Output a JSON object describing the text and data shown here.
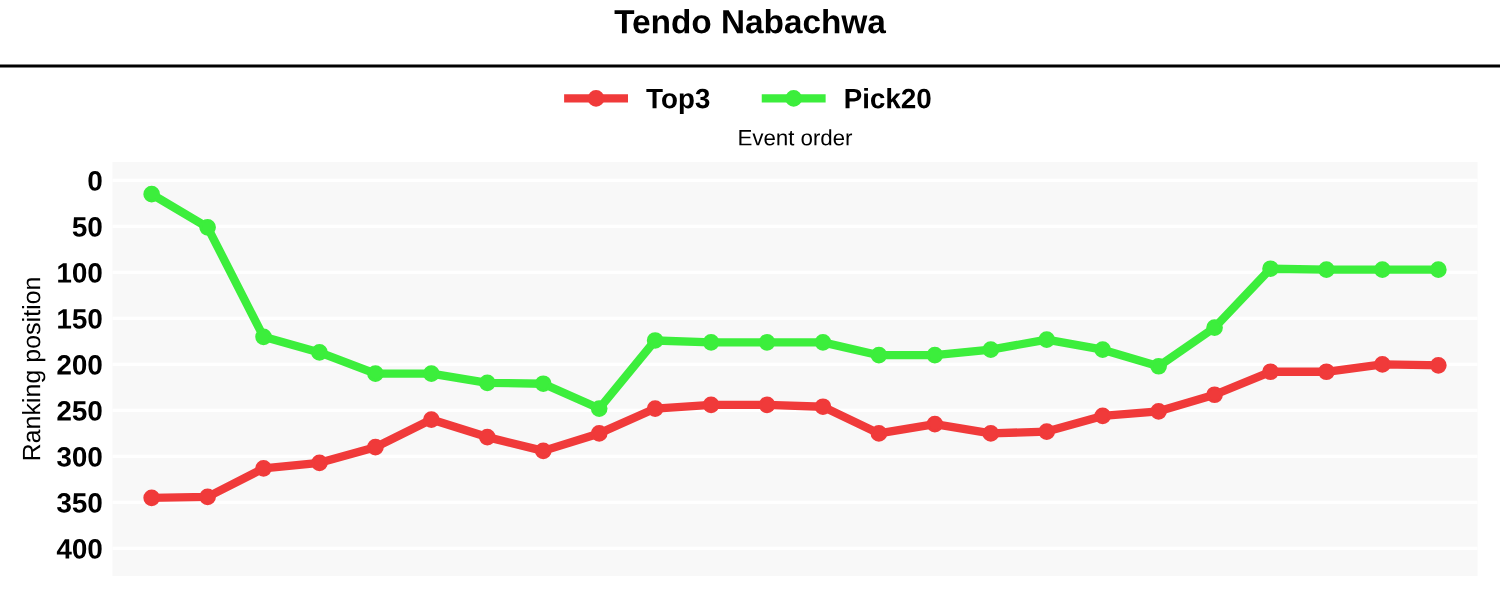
{
  "chart_data": {
    "type": "line",
    "title": "Tendo Nabachwa",
    "xlabel": "Event order",
    "ylabel": "Ranking position",
    "categories": [
      null,
      null,
      null,
      null,
      null,
      null,
      null,
      null,
      null,
      null,
      null,
      null,
      null,
      null,
      null,
      null,
      null,
      null,
      null,
      null,
      null,
      null,
      null,
      null
    ],
    "series": [
      {
        "name": "Top3",
        "color": "#f03a3a",
        "values": [
          345,
          344,
          313,
          307,
          290,
          260,
          279,
          294,
          275,
          248,
          244,
          244,
          246,
          275,
          265,
          275,
          273,
          256,
          251,
          233,
          208,
          208,
          200,
          201
        ]
      },
      {
        "name": "Pick20",
        "color": "#3cee3c",
        "values": [
          15,
          51,
          170,
          187,
          210,
          210,
          220,
          221,
          248,
          174,
          176,
          176,
          176,
          190,
          190,
          184,
          173,
          184,
          202,
          160,
          96,
          97,
          97,
          97
        ]
      }
    ],
    "ylim": [
      430,
      -20
    ],
    "yticks": [
      0,
      50,
      100,
      150,
      200,
      250,
      300,
      350,
      400
    ],
    "grid": "y",
    "legend": "top",
    "tick_labels": "y",
    "marker": "circle",
    "line_style": "solid"
  }
}
